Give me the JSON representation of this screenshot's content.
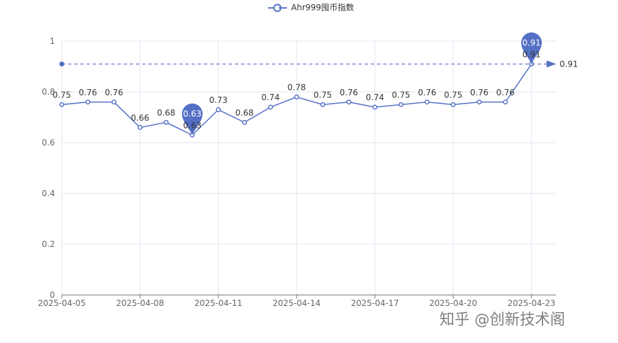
{
  "chart_data": {
    "type": "line",
    "title": "",
    "xlabel": "",
    "ylabel": "",
    "x": [
      "2025-04-05",
      "2025-04-06",
      "2025-04-07",
      "2025-04-08",
      "2025-04-09",
      "2025-04-10",
      "2025-04-11",
      "2025-04-12",
      "2025-04-13",
      "2025-04-14",
      "2025-04-15",
      "2025-04-16",
      "2025-04-17",
      "2025-04-18",
      "2025-04-19",
      "2025-04-20",
      "2025-04-21",
      "2025-04-22",
      "2025-04-23"
    ],
    "x_tick_labels": [
      "2025-04-05",
      "2025-04-08",
      "2025-04-11",
      "2025-04-14",
      "2025-04-17",
      "2025-04-20",
      "2025-04-23"
    ],
    "y_tick_labels": [
      "0",
      "0.2",
      "0.4",
      "0.6",
      "0.8",
      "1"
    ],
    "ylim": [
      0,
      1
    ],
    "series": [
      {
        "name": "Ahr999囤币指数",
        "values": [
          0.75,
          0.76,
          0.76,
          0.66,
          0.68,
          0.63,
          0.73,
          0.68,
          0.74,
          0.78,
          0.75,
          0.76,
          0.74,
          0.75,
          0.76,
          0.75,
          0.76,
          0.76,
          0.91
        ],
        "value_labels": [
          "0.75",
          "0.76",
          "0.76",
          "0.66",
          "0.68",
          "0.63",
          "0.73",
          "0.68",
          "0.74",
          "0.78",
          "0.75",
          "0.76",
          "0.74",
          "0.75",
          "0.76",
          "0.75",
          "0.76",
          "0.76",
          "0.91"
        ]
      }
    ],
    "markers": [
      {
        "kind": "min",
        "date": "2025-04-10",
        "value": 0.63,
        "label": "0.63"
      },
      {
        "kind": "max",
        "date": "2025-04-23",
        "value": 0.91,
        "label": "0.91"
      }
    ],
    "reference_line": {
      "value": 0.91,
      "label": "0.91",
      "style": "dashed"
    },
    "legend_position": "top-center",
    "grid": true
  },
  "legend": {
    "label": "Ahr999囤币指数"
  },
  "watermark": {
    "text": "知乎 @创新技术阁"
  },
  "colors": {
    "series": "#5470c6",
    "grid": "#e0e6f1",
    "axis": "#6e7079",
    "text": "#666666",
    "pin": "#5470c6"
  }
}
